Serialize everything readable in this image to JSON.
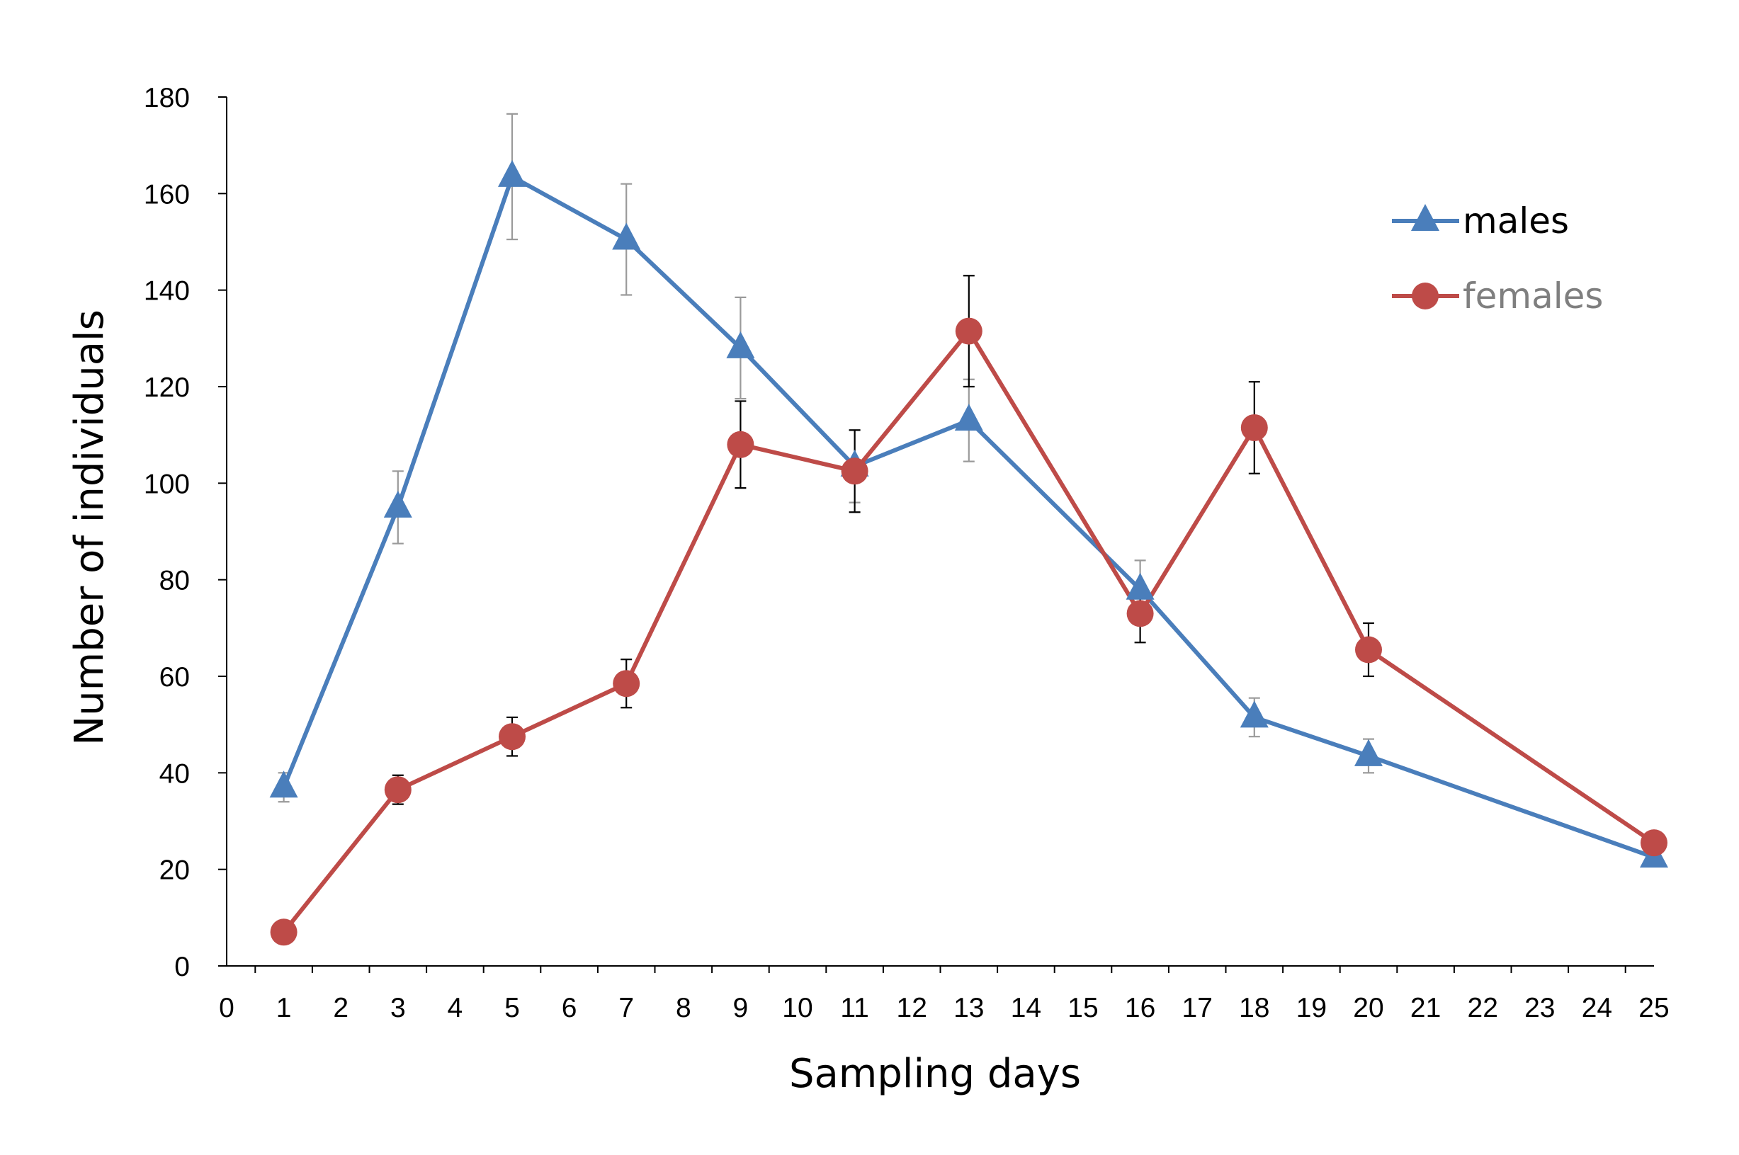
{
  "chart_data": {
    "type": "line",
    "title": "",
    "xlabel": "Sampling days",
    "ylabel": "Number of individuals",
    "x_categories": [
      "0",
      "1",
      "2",
      "3",
      "4",
      "5",
      "6",
      "7",
      "8",
      "9",
      "10",
      "11",
      "12",
      "13",
      "14",
      "15",
      "16",
      "17",
      "18",
      "19",
      "20",
      "21",
      "22",
      "23",
      "24",
      "25"
    ],
    "ylim": [
      0,
      180
    ],
    "yticks": [
      0,
      20,
      40,
      60,
      80,
      100,
      120,
      140,
      160,
      180
    ],
    "grid": false,
    "legend_position": "top-right",
    "series": [
      {
        "name": "males",
        "color": "#4a7ebb",
        "marker": "triangle",
        "x": [
          "1",
          "3",
          "5",
          "7",
          "9",
          "11",
          "13",
          "16",
          "18",
          "20",
          "25"
        ],
        "values": [
          37,
          95,
          163.5,
          150.5,
          128,
          103.5,
          113,
          78,
          51.5,
          43.5,
          22.5
        ],
        "error": [
          3,
          7.5,
          13,
          11.5,
          10.5,
          7.5,
          8.5,
          6,
          4,
          3.5,
          1.5
        ]
      },
      {
        "name": "females",
        "color": "#be4b48",
        "marker": "circle",
        "x": [
          "1",
          "3",
          "5",
          "7",
          "9",
          "11",
          "13",
          "16",
          "18",
          "20",
          "25"
        ],
        "values": [
          7,
          36.5,
          47.5,
          58.5,
          108,
          102.5,
          131.5,
          73,
          111.5,
          65.5,
          25.5
        ],
        "error": [
          0.5,
          3,
          4,
          5,
          9,
          8.5,
          11.5,
          6,
          9.5,
          5.5,
          1
        ]
      }
    ]
  }
}
